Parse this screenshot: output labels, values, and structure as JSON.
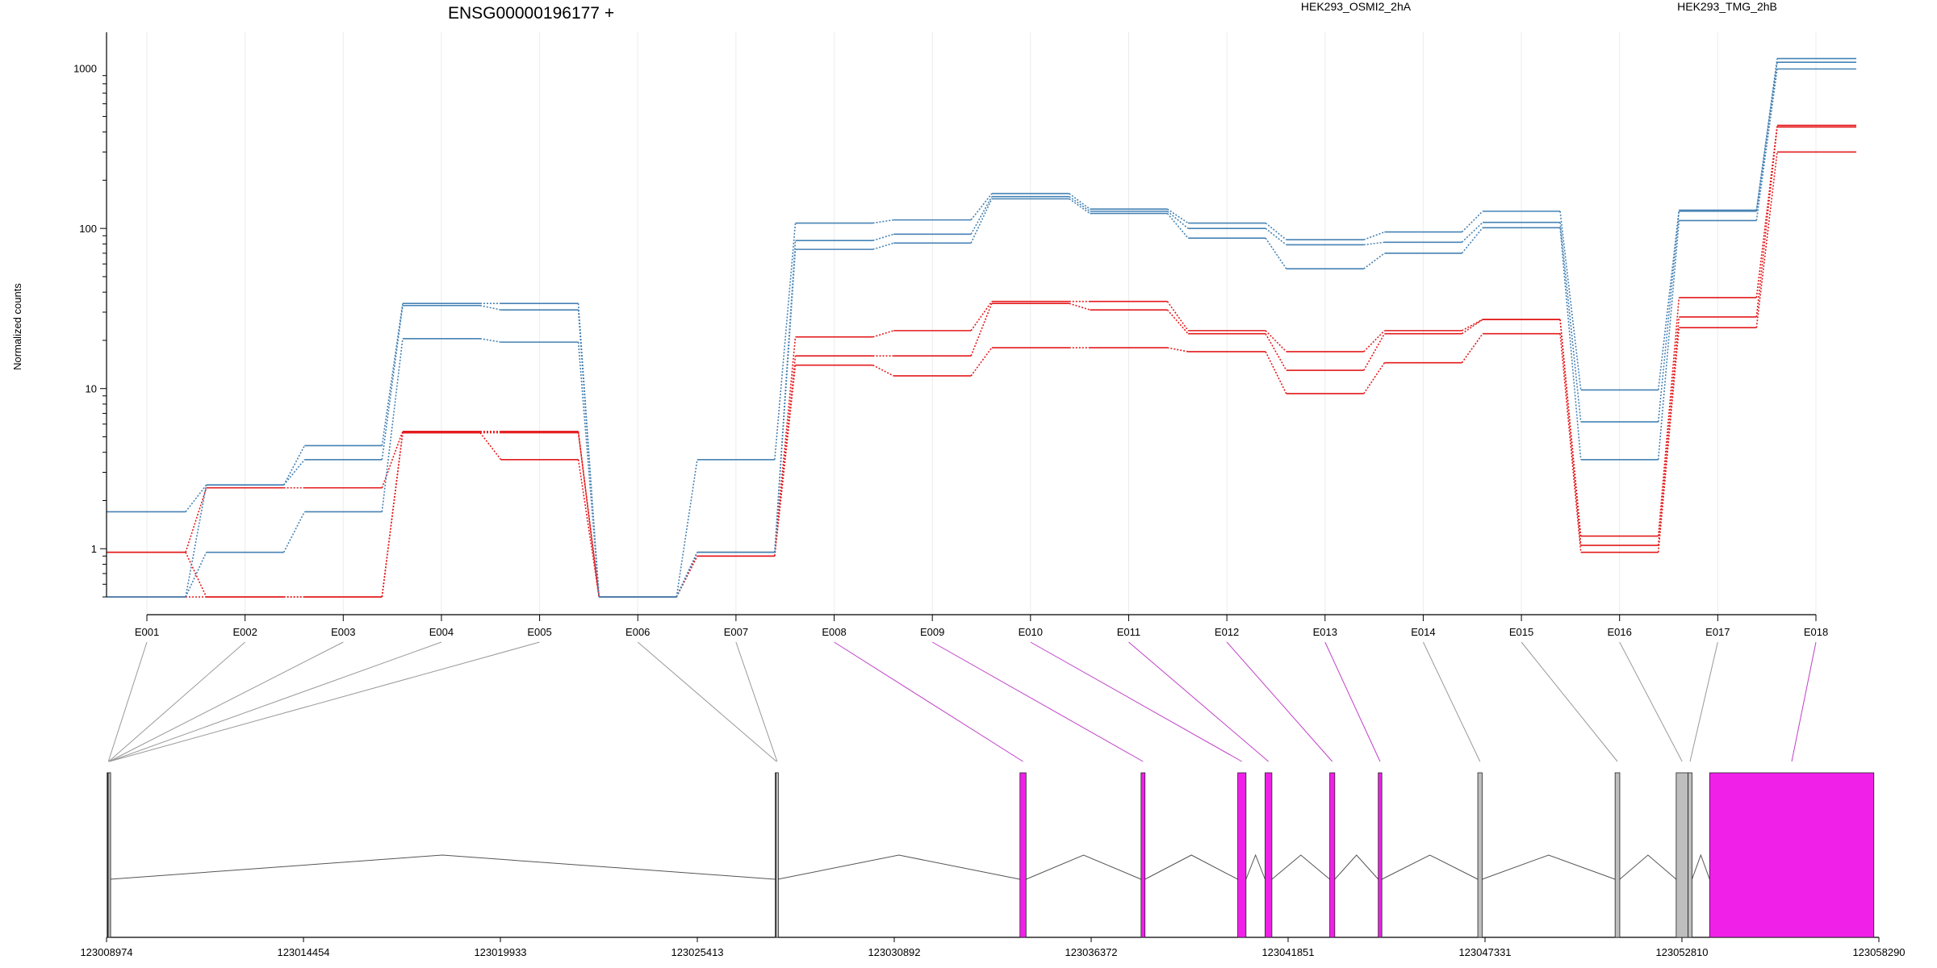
{
  "chart_data": {
    "type": "line",
    "title": "ENSG00000196177 +",
    "xlabel": "",
    "ylabel": "Normalized counts",
    "yscale": "log",
    "ylim": [
      0.5,
      1300
    ],
    "yticks": [
      "1",
      "10",
      "100",
      "1000"
    ],
    "grid": true,
    "legend": "top",
    "categories": [
      "E001",
      "E002",
      "E003",
      "E004",
      "E005",
      "E006",
      "E007",
      "E008",
      "E009",
      "E010",
      "E011",
      "E012",
      "E013",
      "E014",
      "E015",
      "E016",
      "E017",
      "E018"
    ],
    "series": [
      {
        "name": "HEK293_OSMI2_2hA",
        "color": "#e31a1c",
        "values": [
          0.95,
          2.4,
          2.4,
          5.4,
          5.4,
          0.5,
          0.95,
          21,
          23,
          35,
          35,
          23,
          17,
          23,
          27,
          1.2,
          37,
          440
        ]
      },
      {
        "name": "HEK293_OSMI2_2hA",
        "color": "#e31a1c",
        "values": [
          0.95,
          0.5,
          0.5,
          5.3,
          3.6,
          0.5,
          0.9,
          16,
          16,
          34,
          31,
          22,
          13,
          22,
          27,
          1.05,
          28,
          430
        ]
      },
      {
        "name": "HEK293_OSMI2_2hA",
        "color": "#e31a1c",
        "values": [
          0.5,
          0.5,
          0.5,
          5.3,
          5.3,
          0.5,
          0.9,
          14,
          12,
          18,
          18,
          17,
          9.3,
          14.5,
          22,
          0.95,
          24,
          300
        ]
      },
      {
        "name": "HEK293_TMG_2hB",
        "color": "#4682b4",
        "values": [
          1.7,
          2.5,
          4.4,
          34,
          34,
          0.5,
          3.6,
          108,
          113,
          165,
          132,
          108,
          85,
          95,
          128,
          9.8,
          130,
          1150
        ]
      },
      {
        "name": "HEK293_TMG_2hB",
        "color": "#4682b4",
        "values": [
          0.5,
          2.5,
          3.6,
          33,
          31,
          0.5,
          0.95,
          84,
          92,
          158,
          128,
          100,
          79,
          82,
          109,
          6.2,
          128,
          1090
        ]
      },
      {
        "name": "HEK293_TMG_2hB",
        "color": "#4682b4",
        "values": [
          0.5,
          0.95,
          1.7,
          20.5,
          19.5,
          0.5,
          0.95,
          74,
          81,
          153,
          124,
          87,
          56,
          70,
          101,
          3.6,
          112,
          990
        ]
      }
    ],
    "legend_entries": [
      {
        "label": "HEK293_OSMI2_2hA",
        "color": "#e31a1c"
      },
      {
        "label": "HEK293_TMG_2hB",
        "color": "#4682b4"
      }
    ],
    "gene_model": {
      "genomic_ticks": [
        "123008974",
        "123014454",
        "123019933",
        "123025413",
        "123030892",
        "123036372",
        "123041851",
        "123047331",
        "123052810",
        "123058290"
      ],
      "tick_values": [
        123008974,
        123014454,
        123019933,
        123025413,
        123030892,
        123036372,
        123041851,
        123047331,
        123052810,
        123058290
      ],
      "exons": [
        {
          "id": "E001",
          "start": 123008990,
          "end": 123009060,
          "color": "#bebebe"
        },
        {
          "id": "E002",
          "start": 123009000,
          "end": 123009050,
          "color": "#bebebe"
        },
        {
          "id": "E003",
          "start": 123009010,
          "end": 123009055,
          "color": "#bebebe"
        },
        {
          "id": "E004",
          "start": 123009015,
          "end": 123009058,
          "color": "#bebebe"
        },
        {
          "id": "E005",
          "start": 123009020,
          "end": 123009060,
          "color": "#bebebe"
        },
        {
          "id": "E006",
          "start": 123027580,
          "end": 123027640,
          "color": "#bebebe"
        },
        {
          "id": "E007",
          "start": 123027600,
          "end": 123027650,
          "color": "#bebebe"
        },
        {
          "id": "E008",
          "start": 123034390,
          "end": 123034560,
          "color": "#f020e8"
        },
        {
          "id": "E009",
          "start": 123037760,
          "end": 123037870,
          "color": "#f020e8"
        },
        {
          "id": "E010",
          "start": 123040450,
          "end": 123040680,
          "color": "#f020e8"
        },
        {
          "id": "E011",
          "start": 123041210,
          "end": 123041400,
          "color": "#f020e8"
        },
        {
          "id": "E012",
          "start": 123043010,
          "end": 123043150,
          "color": "#f020e8"
        },
        {
          "id": "E013",
          "start": 123044360,
          "end": 123044460,
          "color": "#f020e8"
        },
        {
          "id": "E014",
          "start": 123047130,
          "end": 123047250,
          "color": "#bebebe"
        },
        {
          "id": "E015",
          "start": 123050950,
          "end": 123051080,
          "color": "#bebebe"
        },
        {
          "id": "E016",
          "start": 123052650,
          "end": 123052980,
          "color": "#bebebe"
        },
        {
          "id": "E017",
          "start": 123052980,
          "end": 123053090,
          "color": "#bebebe"
        },
        {
          "id": "E018",
          "start": 123053580,
          "end": 123058150,
          "color": "#f020e8"
        }
      ]
    }
  }
}
